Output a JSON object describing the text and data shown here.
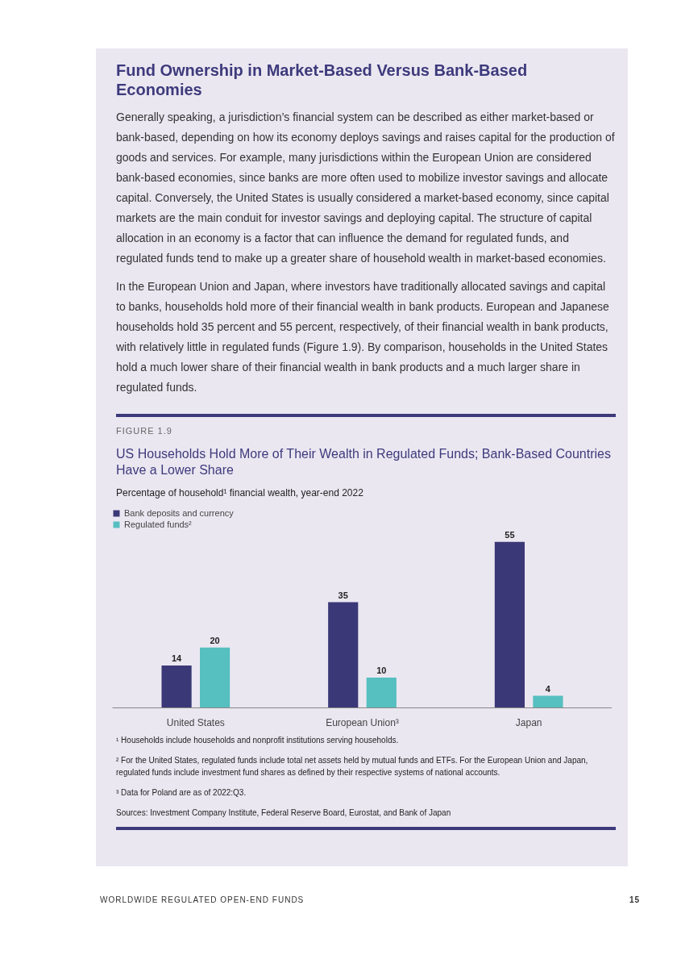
{
  "chart_data": [
    {
      "type": "other",
      "title": "Fund Ownership in Market-Based Versus Bank-Based Economies",
      "annotations": [
        "Generally speaking, a jurisdiction’s financial system can be described as either market-based or bank-based, depending on how its economy deploys savings and raises capital for the production of goods and services. For example, many jurisdictions within the European Union are considered bank-based economies, since banks are more often used to mobilize investor savings and allocate capital. Conversely, the United States is usually considered a market-based economy, since capital markets are the main conduit for investor savings and deploying capital. The structure of capital allocation in an economy is a factor that can influence the demand for regulated funds, and regulated funds tend to make up a greater share of household wealth in market-based economies.",
        "In the European Union and Japan, where investors have traditionally allocated savings and capital to banks, households hold more of their financial wealth in bank products. European and Japanese households hold 35 percent and 55 percent, respectively, of their financial wealth in bank products, with relatively little in regulated funds (Figure 1.9). By comparison, households in the United States hold a much lower share of their financial wealth in bank products and a much larger share in regulated funds."
      ]
    },
    {
      "type": "bar",
      "title": "US Households Hold More of Their Wealth in Regulated Funds; Bank-Based Countries Have a Lower Share",
      "subtitle": "Percentage of household¹ financial wealth, year-end 2022",
      "categories": [
        "United States",
        "European Union³",
        "Japan"
      ],
      "series": [
        {
          "name": "Bank deposits and currency",
          "color": "#3b3878",
          "values": [
            14,
            35,
            55
          ]
        },
        {
          "name": "Regulated funds²",
          "color": "#56bfc0",
          "values": [
            20,
            10,
            4
          ]
        }
      ],
      "data_labels": true,
      "legend": "top left",
      "grid": false,
      "annotations": [
        "FIGURE 1.9",
        "¹ Households include households and nonprofit institutions serving households.",
        "² For the United States, regulated funds include total net assets held by mutual funds and ETFs. For the European Union and Japan, regulated funds include investment fund shares as defined by their respective systems of national accounts.",
        "³ Data for Poland are as of 2022:Q3.",
        "Sources: Investment Company Institute, Federal Reserve Board, Eurostat, and Bank of Japan"
      ]
    },
    {
      "type": "other",
      "annotations": [
        "WORLDWIDE REGULATED OPEN-END FUNDS",
        "15"
      ]
    }
  ]
}
